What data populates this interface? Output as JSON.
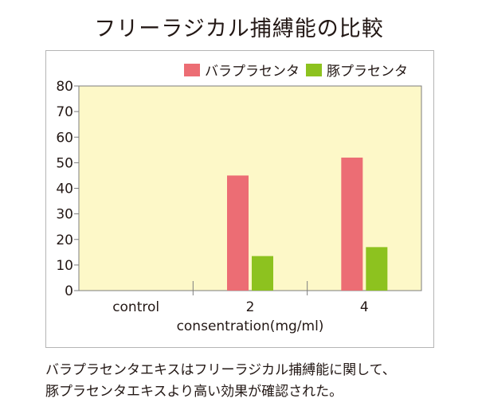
{
  "title": "フリーラジカル捕縛能の比較",
  "chart_data": {
    "type": "bar",
    "categories": [
      "control",
      "2",
      "4"
    ],
    "series": [
      {
        "name": "バラプラセンタ",
        "color": "#ec6d74",
        "values": [
          0,
          45,
          52
        ]
      },
      {
        "name": "豚プラセンタ",
        "color": "#8dc21f",
        "values": [
          0,
          13.5,
          17
        ]
      }
    ],
    "xlabel": "consentration(mg/ml)",
    "ylabel": "",
    "ylim": [
      0,
      80
    ],
    "yticks": [
      0,
      10,
      20,
      30,
      40,
      50,
      60,
      70,
      80
    ],
    "legend_position": "top-right",
    "plot_background": "#fdf8c8",
    "grid": false
  },
  "caption": {
    "line1": "バラプラセンタエキスはフリーラジカル捕縛能に関して、",
    "line2": "豚プラセンタエキスより高い効果が確認された。"
  }
}
